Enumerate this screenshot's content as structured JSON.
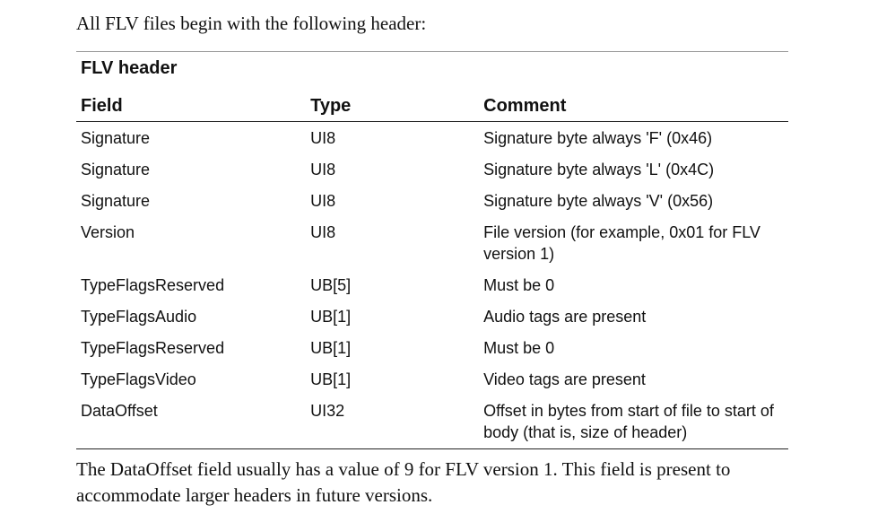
{
  "intro_text": "All FLV files begin with the following header:",
  "table": {
    "title": "FLV header",
    "columns": [
      "Field",
      "Type",
      "Comment"
    ],
    "rows": [
      {
        "field": "Signature",
        "type": "UI8",
        "comment": "Signature byte always 'F' (0x46)"
      },
      {
        "field": "Signature",
        "type": "UI8",
        "comment": "Signature byte always 'L' (0x4C)"
      },
      {
        "field": "Signature",
        "type": "UI8",
        "comment": "Signature byte always 'V' (0x56)"
      },
      {
        "field": "Version",
        "type": "UI8",
        "comment": "File version (for example, 0x01 for FLV version 1)"
      },
      {
        "field": "TypeFlagsReserved",
        "type": "UB[5]",
        "comment": "Must be 0"
      },
      {
        "field": "TypeFlagsAudio",
        "type": "UB[1]",
        "comment": "Audio tags are present"
      },
      {
        "field": "TypeFlagsReserved",
        "type": "UB[1]",
        "comment": "Must be 0"
      },
      {
        "field": "TypeFlagsVideo",
        "type": "UB[1]",
        "comment": "Video tags are present"
      },
      {
        "field": "DataOffset",
        "type": "UI32",
        "comment": "Offset in bytes from start of file to start of body (that is, size of header)"
      }
    ]
  },
  "outro_text": "The DataOffset field usually has a value of 9 for FLV version 1. This field is present to accommodate larger headers in future versions."
}
